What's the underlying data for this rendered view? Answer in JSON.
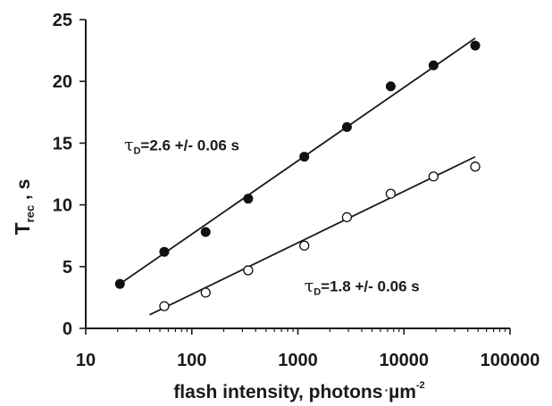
{
  "chart_data": {
    "type": "scatter",
    "title": "",
    "x_scale": "log",
    "xlim": [
      10,
      100000
    ],
    "ylim": [
      0,
      25
    ],
    "x_ticks": [
      "10",
      "100",
      "1000",
      "10000",
      "100000"
    ],
    "y_ticks": [
      "0",
      "5",
      "10",
      "15",
      "20",
      "25"
    ],
    "xlabel": {
      "main": "flash intensity, photons",
      "unit": "µm",
      "exp": "-2"
    },
    "ylabel": {
      "main": "T",
      "sub": "rec",
      "rest": " , s"
    },
    "grid": false,
    "series": [
      {
        "marker": "filled-circle",
        "x": [
          21,
          55,
          135,
          340,
          1150,
          2900,
          7500,
          19000,
          47000
        ],
        "y": [
          3.6,
          6.2,
          7.8,
          10.5,
          13.9,
          16.3,
          19.6,
          21.3,
          22.9
        ],
        "fit": {
          "x": [
            21,
            47000
          ],
          "y": [
            3.6,
            23.5
          ]
        },
        "annotation": {
          "symbol": "τ",
          "sub": "D",
          "text": "=2.6 +/- 0.06 s",
          "at": [
            23,
            14.4
          ]
        }
      },
      {
        "marker": "open-circle",
        "x": [
          55,
          135,
          340,
          1150,
          2900,
          7500,
          19000,
          47000
        ],
        "y": [
          1.8,
          2.9,
          4.7,
          6.7,
          9.0,
          10.9,
          12.3,
          13.1
        ],
        "fit": {
          "x": [
            40,
            47000
          ],
          "y": [
            1.1,
            13.9
          ]
        },
        "annotation": {
          "symbol": "τ",
          "sub": "D",
          "text": "=1.8 +/- 0.06 s",
          "at": [
            1150,
            3.0
          ]
        }
      }
    ]
  }
}
